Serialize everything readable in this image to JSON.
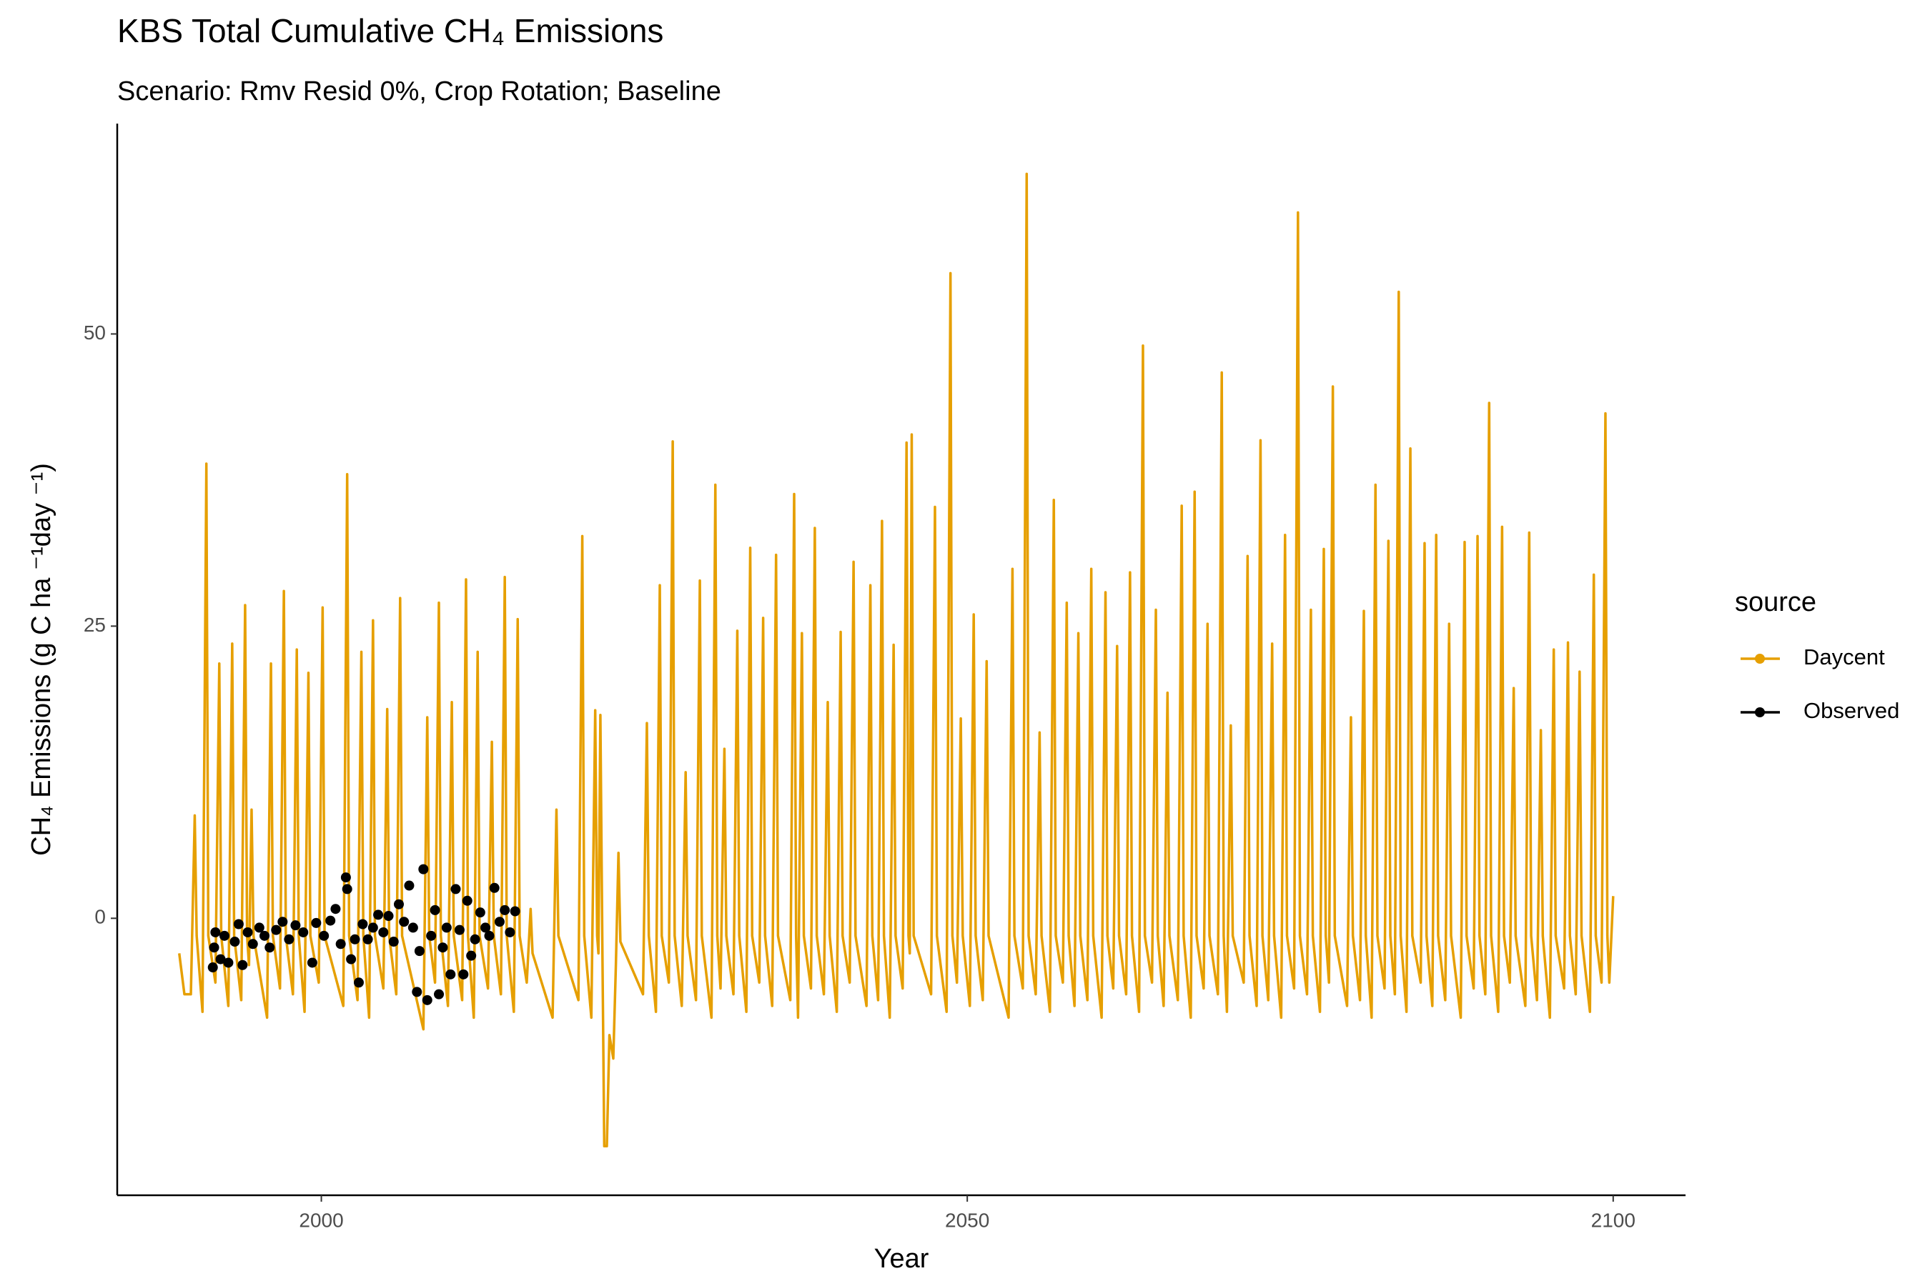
{
  "chart_data": {
    "type": "line",
    "title": "KBS Total Cumulative CH₄ Emissions",
    "subtitle": "Scenario: Rmv Resid 0%, Crop Rotation; Baseline",
    "x_label": "Year",
    "y_label": "CH₄ Emissions (g C ha ⁻¹day ⁻¹)",
    "legend_title": "source",
    "legend_position": "right",
    "xlim": [
      1984.2,
      2105.6
    ],
    "xticks": [
      2000,
      2050,
      2100
    ],
    "ylim": [
      -23.7,
      68
    ],
    "yticks": [
      0,
      25,
      50
    ],
    "grid": false,
    "series": [
      {
        "name": "Daycent",
        "color": "#E69F00",
        "style": "line",
        "x": [
          1989.0,
          1989.4,
          1989.9,
          1990.2,
          1990.35,
          1990.8,
          1991.1,
          1991.25,
          1991.8,
          1992.1,
          1992.25,
          1992.8,
          1993.1,
          1993.25,
          1993.8,
          1994.1,
          1994.25,
          1994.4,
          1994.6,
          1994.75,
          1995.8,
          1996.1,
          1996.25,
          1996.8,
          1997.1,
          1997.25,
          1997.8,
          1998.1,
          1998.25,
          1998.7,
          1999.0,
          1999.15,
          1999.8,
          2000.1,
          2000.25,
          2001.7,
          2002.0,
          2002.15,
          2002.8,
          2003.1,
          2003.25,
          2003.7,
          2004.0,
          2004.15,
          2004.8,
          2005.1,
          2005.25,
          2005.8,
          2006.1,
          2006.25,
          2007.9,
          2008.2,
          2008.35,
          2008.8,
          2009.1,
          2009.25,
          2009.8,
          2010.1,
          2010.25,
          2010.9,
          2011.2,
          2011.35,
          2011.8,
          2012.1,
          2012.25,
          2012.9,
          2013.2,
          2013.35,
          2013.9,
          2014.2,
          2014.35,
          2014.9,
          2015.2,
          2015.35,
          2015.9,
          2016.2,
          2016.35,
          2017.9,
          2018.2,
          2018.35,
          2019.9,
          2020.2,
          2020.35,
          2020.9,
          2021.2,
          2021.35,
          2021.45,
          2021.6,
          2021.75,
          2021.9,
          2022.1,
          2022.3,
          2022.6,
          2022.8,
          2023.0,
          2023.15,
          2024.9,
          2025.2,
          2025.35,
          2025.9,
          2026.2,
          2026.35,
          2026.9,
          2027.2,
          2027.35,
          2027.9,
          2028.2,
          2028.35,
          2029.0,
          2029.3,
          2029.45,
          2030.2,
          2030.5,
          2030.65,
          2030.9,
          2031.2,
          2031.35,
          2031.9,
          2032.2,
          2032.35,
          2032.9,
          2033.2,
          2033.35,
          2033.9,
          2034.2,
          2034.35,
          2034.9,
          2035.2,
          2035.35,
          2036.3,
          2036.6,
          2036.75,
          2036.9,
          2037.2,
          2037.35,
          2037.9,
          2038.2,
          2038.35,
          2038.9,
          2039.2,
          2039.35,
          2039.9,
          2040.2,
          2040.35,
          2040.9,
          2041.2,
          2041.35,
          2042.2,
          2042.5,
          2042.65,
          2043.1,
          2043.4,
          2043.55,
          2044.0,
          2044.3,
          2044.45,
          2045.0,
          2045.3,
          2045.45,
          2045.55,
          2045.7,
          2045.85,
          2047.2,
          2047.5,
          2047.65,
          2048.4,
          2048.7,
          2048.85,
          2049.2,
          2049.5,
          2049.65,
          2050.2,
          2050.5,
          2050.65,
          2051.2,
          2051.5,
          2051.65,
          2053.2,
          2053.5,
          2053.65,
          2054.3,
          2054.6,
          2054.75,
          2055.3,
          2055.6,
          2055.75,
          2056.4,
          2056.7,
          2056.85,
          2057.4,
          2057.7,
          2057.85,
          2058.3,
          2058.6,
          2058.75,
          2059.3,
          2059.6,
          2059.75,
          2060.4,
          2060.7,
          2060.85,
          2061.3,
          2061.6,
          2061.75,
          2062.3,
          2062.6,
          2062.75,
          2063.3,
          2063.6,
          2063.75,
          2064.3,
          2064.6,
          2064.75,
          2065.2,
          2065.5,
          2065.65,
          2066.3,
          2066.6,
          2066.75,
          2067.3,
          2067.6,
          2067.75,
          2068.3,
          2068.6,
          2068.75,
          2069.4,
          2069.7,
          2069.85,
          2070.1,
          2070.4,
          2070.55,
          2071.4,
          2071.7,
          2071.85,
          2072.4,
          2072.7,
          2072.85,
          2073.3,
          2073.6,
          2073.75,
          2074.3,
          2074.6,
          2074.75,
          2075.3,
          2075.6,
          2075.75,
          2076.3,
          2076.6,
          2076.75,
          2077.3,
          2077.6,
          2077.75,
          2078.0,
          2078.3,
          2078.45,
          2079.4,
          2079.7,
          2079.85,
          2080.4,
          2080.7,
          2080.85,
          2081.3,
          2081.6,
          2081.75,
          2082.3,
          2082.6,
          2082.75,
          2083.1,
          2083.4,
          2083.55,
          2084.0,
          2084.3,
          2084.45,
          2085.1,
          2085.4,
          2085.55,
          2086.0,
          2086.3,
          2086.45,
          2087.0,
          2087.3,
          2087.45,
          2088.2,
          2088.5,
          2088.65,
          2089.2,
          2089.5,
          2089.65,
          2090.1,
          2090.4,
          2090.55,
          2091.1,
          2091.4,
          2091.55,
          2092.0,
          2092.3,
          2092.45,
          2093.2,
          2093.5,
          2093.65,
          2094.1,
          2094.4,
          2094.55,
          2095.1,
          2095.4,
          2095.55,
          2096.2,
          2096.5,
          2096.65,
          2097.1,
          2097.4,
          2097.55,
          2098.2,
          2098.5,
          2098.65,
          2099.1,
          2099.4,
          2099.55,
          2099.7,
          2100.0
        ],
        "values": [
          -3,
          -6.5,
          -6.5,
          8.8,
          -1.5,
          -8,
          38.9,
          -1.5,
          -5.5,
          21.8,
          -1.5,
          -7.5,
          23.5,
          -1.5,
          -7,
          26.8,
          -1.5,
          -4,
          9.3,
          -1.5,
          -8.5,
          21.8,
          -1.5,
          -6,
          28,
          -1.5,
          -6.5,
          23,
          -1.5,
          -8,
          21,
          -1.5,
          -5.5,
          26.6,
          -1.5,
          -7.5,
          38,
          -1.5,
          -7,
          22.8,
          -1.5,
          -8.5,
          25.5,
          -1.5,
          -6,
          17.9,
          -1.5,
          -6.5,
          27.4,
          -1.5,
          -9.5,
          17.2,
          -1.5,
          -5.5,
          27,
          -1.5,
          -7.5,
          18.5,
          -1.5,
          -7,
          29,
          -1.5,
          -8.5,
          22.8,
          -1.5,
          -6,
          15.1,
          -1.5,
          -6.5,
          29.2,
          -1.5,
          -8,
          25.6,
          -1.5,
          -5.5,
          0.8,
          -3,
          -8.5,
          9.3,
          -1.5,
          -7,
          32.7,
          -1.5,
          -8.5,
          17.8,
          -1.5,
          -3,
          17.4,
          -2,
          -19.5,
          -19.5,
          -10,
          -12,
          -4,
          5.6,
          -2,
          -6.5,
          16.7,
          -1.5,
          -8,
          28.5,
          -1.5,
          -5.5,
          40.8,
          -1.5,
          -7.5,
          12.5,
          -1.5,
          -7,
          28.9,
          -1.5,
          -8.5,
          37.1,
          -1.5,
          -6,
          14.5,
          -1.5,
          -6.5,
          24.6,
          -1.5,
          -8,
          31.7,
          -1.5,
          -5.5,
          25.7,
          -1.5,
          -7.5,
          31.1,
          -1.5,
          -7,
          36.3,
          -1.5,
          -8.5,
          24.4,
          -1.5,
          -6,
          33.4,
          -1.5,
          -6.5,
          18.5,
          -1.5,
          -8,
          24.5,
          -1.5,
          -5.5,
          30.5,
          -1.5,
          -7.5,
          28.5,
          -1.5,
          -7,
          34,
          -1.5,
          -8.5,
          23.4,
          -1.5,
          -6,
          40.7,
          -1.5,
          -3,
          41.4,
          -1.5,
          -6.5,
          35.2,
          -1.5,
          -8,
          55.2,
          -1.5,
          -5.5,
          17.1,
          -1.5,
          -7.5,
          26,
          -1.5,
          -7,
          22,
          -1.5,
          -8.5,
          29.9,
          -1.5,
          -6,
          63.7,
          -1.5,
          -6.5,
          15.9,
          -1.5,
          -8,
          35.8,
          -1.5,
          -5.5,
          27,
          -1.5,
          -7.5,
          24.4,
          -1.5,
          -7,
          29.9,
          -1.5,
          -8.5,
          27.9,
          -1.5,
          -6,
          23.3,
          -1.5,
          -6.5,
          29.6,
          -1.5,
          -8,
          49,
          -1.5,
          -5.5,
          26.4,
          -1.5,
          -7.5,
          19.3,
          -1.5,
          -7,
          35.3,
          -1.5,
          -8.5,
          36.5,
          -1.5,
          -6,
          25.2,
          -1.5,
          -6.5,
          46.7,
          -1.5,
          -8,
          16.5,
          -1.5,
          -5.5,
          31,
          -1.5,
          -7.5,
          40.9,
          -1.5,
          -7,
          23.5,
          -1.5,
          -8.5,
          32.8,
          -1.5,
          -6,
          60.4,
          -1.5,
          -6.5,
          26.4,
          -1.5,
          -8,
          31.6,
          -1.5,
          -5.5,
          45.5,
          -1.5,
          -7.5,
          17.2,
          -1.5,
          -7,
          26.3,
          -1.5,
          -8.5,
          37.1,
          -1.5,
          -6,
          32.3,
          -1.5,
          -6.5,
          53.6,
          -1.5,
          -8,
          40.2,
          -1.5,
          -5.5,
          32.1,
          -1.5,
          -7.5,
          32.8,
          -1.5,
          -7,
          25.2,
          -1.5,
          -8.5,
          32.2,
          -1.5,
          -6,
          32.7,
          -1.5,
          -6.5,
          44.1,
          -1.5,
          -8,
          33.5,
          -1.5,
          -5.5,
          19.7,
          -1.5,
          -7.5,
          33,
          -1.5,
          -7,
          16.1,
          -1.5,
          -8.5,
          23,
          -1.5,
          -6,
          23.6,
          -1.5,
          -6.5,
          21.1,
          -1.5,
          -8,
          29.4,
          -1.5,
          -5.5,
          43.2,
          -1.5,
          -5.5,
          1.9
        ]
      },
      {
        "name": "Observed",
        "color": "#000000",
        "style": "points",
        "x": [
          1991.6,
          1991.7,
          1991.8,
          1992.2,
          1992.5,
          1992.8,
          1993.3,
          1993.6,
          1993.9,
          1994.3,
          1994.7,
          1995.2,
          1995.6,
          1996.0,
          1996.5,
          1997.0,
          1997.5,
          1998.0,
          1998.6,
          1999.3,
          1999.6,
          2000.2,
          2000.7,
          2001.1,
          2001.5,
          2001.9,
          2002.0,
          2002.3,
          2002.6,
          2002.9,
          2003.2,
          2003.6,
          2004.0,
          2004.4,
          2004.8,
          2005.2,
          2005.6,
          2006.0,
          2006.4,
          2006.8,
          2007.1,
          2007.4,
          2007.6,
          2007.9,
          2008.2,
          2008.5,
          2008.8,
          2009.1,
          2009.4,
          2009.7,
          2010.0,
          2010.4,
          2010.7,
          2011.0,
          2011.3,
          2011.6,
          2011.9,
          2012.3,
          2012.7,
          2013.0,
          2013.4,
          2013.8,
          2014.2,
          2014.6,
          2015.0
        ],
        "values": [
          -4.2,
          -2.5,
          -1.2,
          -3.5,
          -1.5,
          -3.8,
          -2,
          -0.5,
          -4,
          -1.2,
          -2.2,
          -0.8,
          -1.5,
          -2.5,
          -1,
          -0.3,
          -1.8,
          -0.6,
          -1.2,
          -3.8,
          -0.4,
          -1.5,
          -0.2,
          0.8,
          -2.2,
          3.5,
          2.5,
          -3.5,
          -1.8,
          -5.5,
          -0.5,
          -1.8,
          -0.8,
          0.3,
          -1.2,
          0.2,
          -2,
          1.2,
          -0.3,
          2.8,
          -0.8,
          -6.3,
          -2.8,
          4.2,
          -7,
          -1.5,
          0.7,
          -6.5,
          -2.5,
          -0.8,
          -4.8,
          2.5,
          -1,
          -4.8,
          1.5,
          -3.2,
          -1.8,
          0.5,
          -0.8,
          -1.5,
          2.6,
          -0.3,
          0.7,
          -1.2,
          0.6
        ]
      }
    ]
  }
}
